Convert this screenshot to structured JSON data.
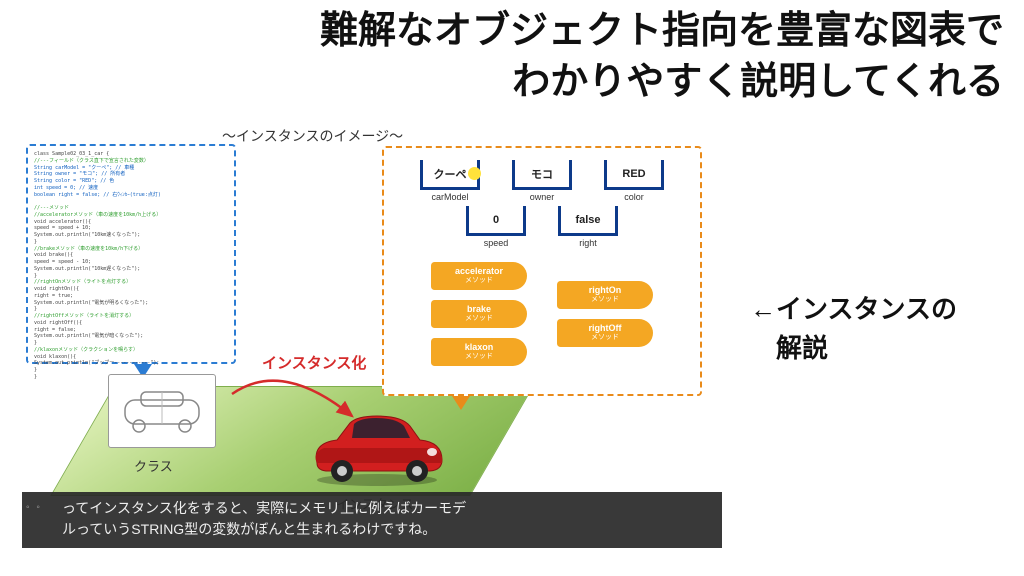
{
  "heading_line1": "難解なオブジェクト指向を豊富な図表で",
  "heading_line2": "わかりやすく説明してくれる",
  "diagram": {
    "title": "〜インスタンスのイメージ〜",
    "code_lines": [
      {
        "t": "class Sample02_03_1_car {",
        "cls": ""
      },
      {
        "t": "  //---フィールド（クラス直下で宣言された変数）",
        "cls": "cmt"
      },
      {
        "t": "  String carModel = \"クーペ\";  // 車種",
        "cls": "kw"
      },
      {
        "t": "  String owner    = \"モコ\";    // 所有者",
        "cls": "kw"
      },
      {
        "t": "  String color    = \"RED\";    // 色",
        "cls": "kw"
      },
      {
        "t": "  int    speed    = 0;         // 速度",
        "cls": "kw"
      },
      {
        "t": "  boolean right   = false;     // 右ｳｨﾝｶｰ(true:点灯)",
        "cls": "kw"
      },
      {
        "t": "",
        "cls": ""
      },
      {
        "t": "  //---メソッド",
        "cls": "cmt"
      },
      {
        "t": "  //acceleratorメソッド（車の速度を10km/h上げる）",
        "cls": "cmt"
      },
      {
        "t": "  void accelerator(){",
        "cls": ""
      },
      {
        "t": "    speed = speed + 10;",
        "cls": ""
      },
      {
        "t": "    System.out.println(\"10km速くなった\");",
        "cls": ""
      },
      {
        "t": "  }",
        "cls": ""
      },
      {
        "t": "  //brakeメソッド（車の速度を10km/h下げる）",
        "cls": "cmt"
      },
      {
        "t": "  void brake(){",
        "cls": ""
      },
      {
        "t": "    speed = speed - 10;",
        "cls": ""
      },
      {
        "t": "    System.out.println(\"10km遅くなった\");",
        "cls": ""
      },
      {
        "t": "  }",
        "cls": ""
      },
      {
        "t": "  //rightOnメソッド（ライトを点灯する）",
        "cls": "cmt"
      },
      {
        "t": "  void rightOn(){",
        "cls": ""
      },
      {
        "t": "    right = true;",
        "cls": ""
      },
      {
        "t": "    System.out.println(\"電気が明るくなった\");",
        "cls": ""
      },
      {
        "t": "  }",
        "cls": ""
      },
      {
        "t": "  //rightOffメソッド（ライトを消灯する）",
        "cls": "cmt"
      },
      {
        "t": "  void rightOff(){",
        "cls": ""
      },
      {
        "t": "    right = false;",
        "cls": ""
      },
      {
        "t": "    System.out.println(\"電気が暗くなった\");",
        "cls": ""
      },
      {
        "t": "  }",
        "cls": ""
      },
      {
        "t": "  //klaxonメソッド（クラクションを鳴らす）",
        "cls": "cmt"
      },
      {
        "t": "  void klaxon(){",
        "cls": ""
      },
      {
        "t": "    System.out.println(\"ブッブー------------\");",
        "cls": ""
      },
      {
        "t": "  }",
        "cls": ""
      },
      {
        "t": "}",
        "cls": ""
      }
    ],
    "class_label": "クラス",
    "instance_label": "インスタンス",
    "instantiation_label": "インスタンス化",
    "fields_row1": [
      {
        "value": "クーペ",
        "name": "carModel",
        "hl": true
      },
      {
        "value": "モコ",
        "name": "owner",
        "hl": false
      },
      {
        "value": "RED",
        "name": "color",
        "hl": false
      }
    ],
    "fields_row2": [
      {
        "value": "0",
        "name": "speed",
        "hl": false
      },
      {
        "value": "false",
        "name": "right",
        "hl": false
      }
    ],
    "methods_left": [
      {
        "main": "accelerator",
        "sub": "メソッド"
      },
      {
        "main": "brake",
        "sub": "メソッド"
      },
      {
        "main": "klaxon",
        "sub": "メソッド"
      }
    ],
    "methods_right": [
      {
        "main": "rightOn",
        "sub": "メソッド"
      },
      {
        "main": "rightOff",
        "sub": "メソッド"
      }
    ],
    "colors": {
      "code_border": "#2b7cd3",
      "inst_border": "#e98b1a",
      "bracket": "#0d3a8a",
      "method_fill": "#f4a723",
      "highlight": "#ffe23b",
      "ground_a": "#dff0b8",
      "ground_b": "#7fb24a",
      "car_body": "#d21f1f",
      "car_dark": "#8e1212"
    }
  },
  "annotation_line1": "←インスタンスの",
  "annotation_line2": "　解説",
  "subtitle_line1": "ってインスタンス化をすると、実際にメモリ上に例えばカーモデ",
  "subtitle_line2": "ルっていうSTRING型の変数がぼんと生まれるわけですね。",
  "sub_controls": "◦ ◦"
}
